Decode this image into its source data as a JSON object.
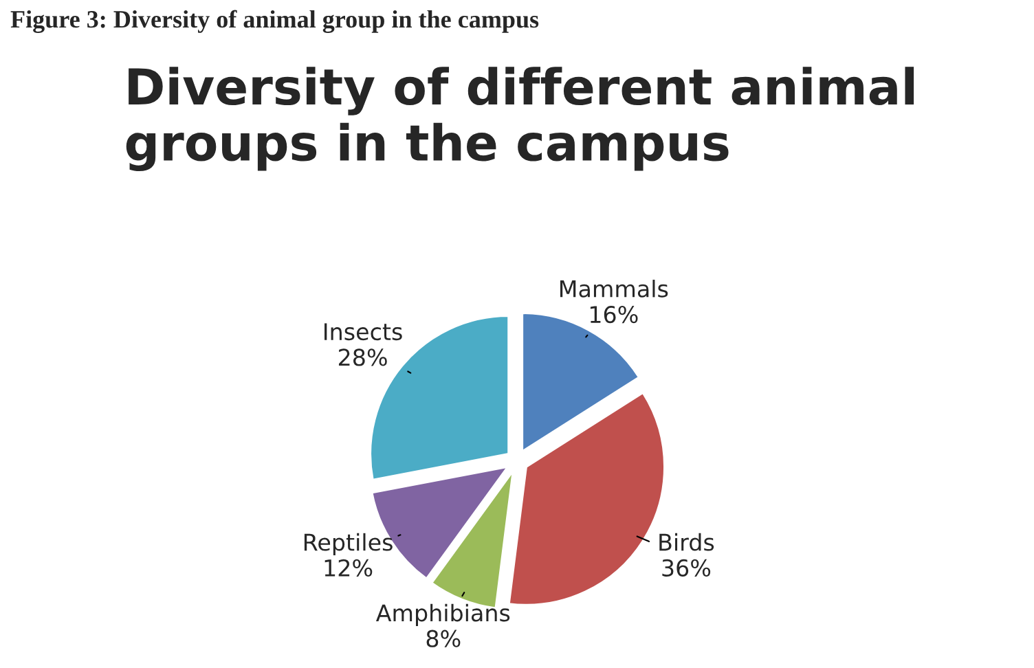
{
  "chart_data": {
    "type": "pie",
    "title": "Diversity of different animal groups in the campus",
    "annotations": [
      "Figure 3: Diversity of animal group in the campus"
    ],
    "categories": [
      "Mammals",
      "Birds",
      "Amphibians",
      "Reptiles",
      "Insects"
    ],
    "values": [
      16,
      36,
      8,
      12,
      28
    ],
    "value_labels": [
      "16%",
      "36%",
      "8%",
      "12%",
      "28%"
    ],
    "colors": [
      "#4f81bd",
      "#c0504d",
      "#9bbb59",
      "#8064a2",
      "#4bacc6"
    ]
  }
}
